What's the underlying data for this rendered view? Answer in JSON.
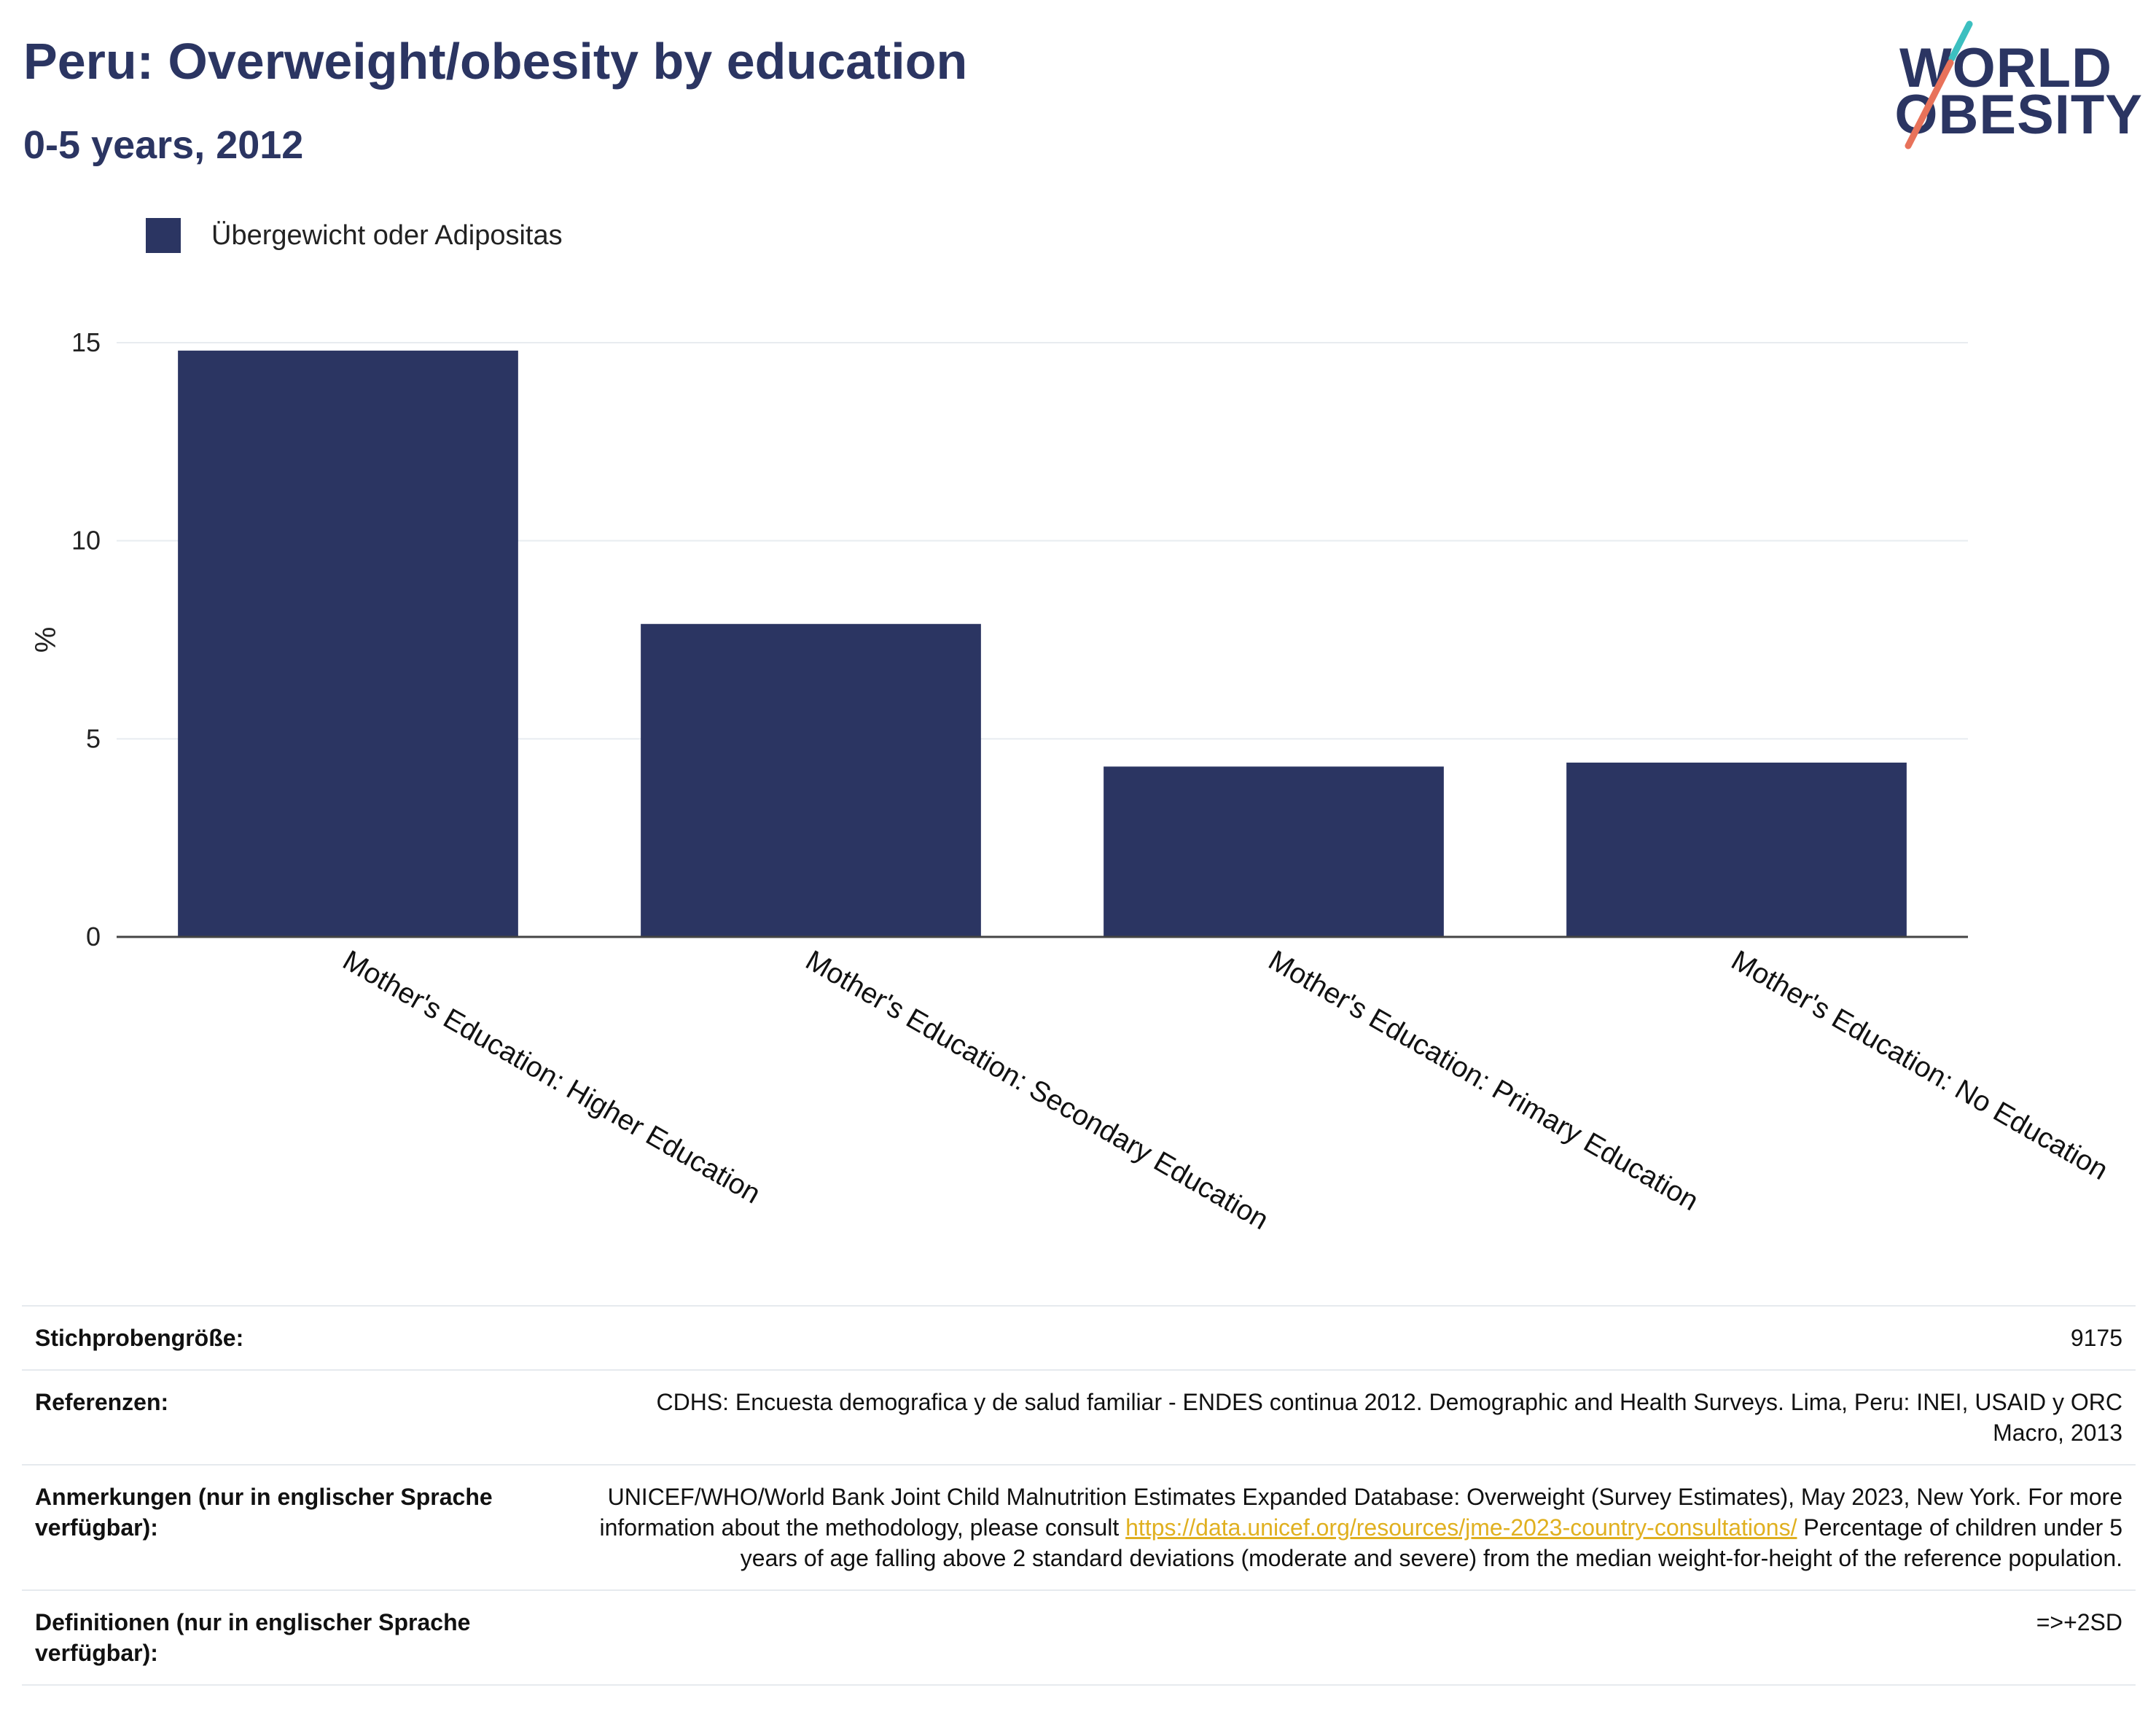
{
  "header": {
    "title": "Peru: Overweight/obesity by education",
    "subtitle": "0-5 years, 2012"
  },
  "logo": {
    "line1": "WORLD",
    "line2": "OBESITY",
    "colors": {
      "text": "#2b3562",
      "slash_top": "#3cbfc0",
      "slash_bottom": "#e8725a"
    }
  },
  "colors": {
    "bar": "#2b3562",
    "grid": "#e8ecf0",
    "axis": "#444444",
    "link": "#e0b020"
  },
  "chart_data": {
    "type": "bar",
    "categories": [
      "Mother's Education: Higher Education",
      "Mother's Education: Secondary Education",
      "Mother's Education: Primary Education",
      "Mother's Education: No Education"
    ],
    "series": [
      {
        "name": "Übergewicht oder Adipositas",
        "values": [
          14.8,
          7.9,
          4.3,
          4.4
        ]
      }
    ],
    "ylabel": "%",
    "ylim": [
      0,
      15
    ],
    "yticks": [
      0,
      5,
      10,
      15
    ],
    "grid": true,
    "legend": "top-left"
  },
  "info": {
    "rows": [
      {
        "key": "Stichprobengröße:",
        "value": "9175"
      },
      {
        "key": "Referenzen:",
        "value": "CDHS: Encuesta demografica y de salud familiar - ENDES continua 2012. Demographic and Health Surveys. Lima, Peru: INEI, USAID y ORC Macro, 2013"
      },
      {
        "key": "Anmerkungen (nur in englischer Sprache verfügbar):",
        "value_before": "UNICEF/WHO/World Bank Joint Child Malnutrition Estimates Expanded Database: Overweight (Survey Estimates), May 2023, New York. For more information about the methodology, please consult ",
        "link": "https://data.unicef.org/resources/jme-2023-country-consultations/",
        "value_after": " Percentage of children under 5 years of age falling above 2 standard deviations (moderate and severe) from the median weight-for-height of the reference population."
      },
      {
        "key": "Definitionen (nur in englischer Sprache verfügbar):",
        "value": "=>+2SD"
      }
    ]
  }
}
